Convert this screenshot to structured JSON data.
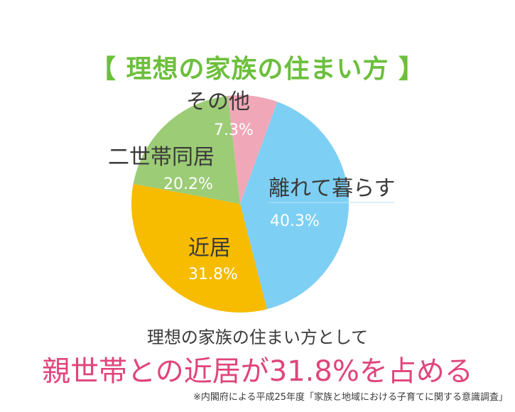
{
  "chart_data": {
    "type": "pie",
    "title": "【 理想の家族の住まい方 】",
    "slices": [
      {
        "label": "離れて暮らす",
        "value": 40.3,
        "display": "40.3%",
        "color": "#7ecff4"
      },
      {
        "label": "近居",
        "value": 31.8,
        "display": "31.8%",
        "color": "#f7bb00"
      },
      {
        "label": "二世帯同居",
        "value": 20.2,
        "display": "20.2%",
        "color": "#9ccc76"
      },
      {
        "label": "その他",
        "value": 7.3,
        "display": "7.3%",
        "color": "#f0a8b8"
      }
    ]
  },
  "subtitle": "理想の家族の住まい方として",
  "headline": "親世帯との近居が31.8%を占める",
  "note": "※内閣府による平成25年度「家族と地域における子育てに関する意識調査」"
}
